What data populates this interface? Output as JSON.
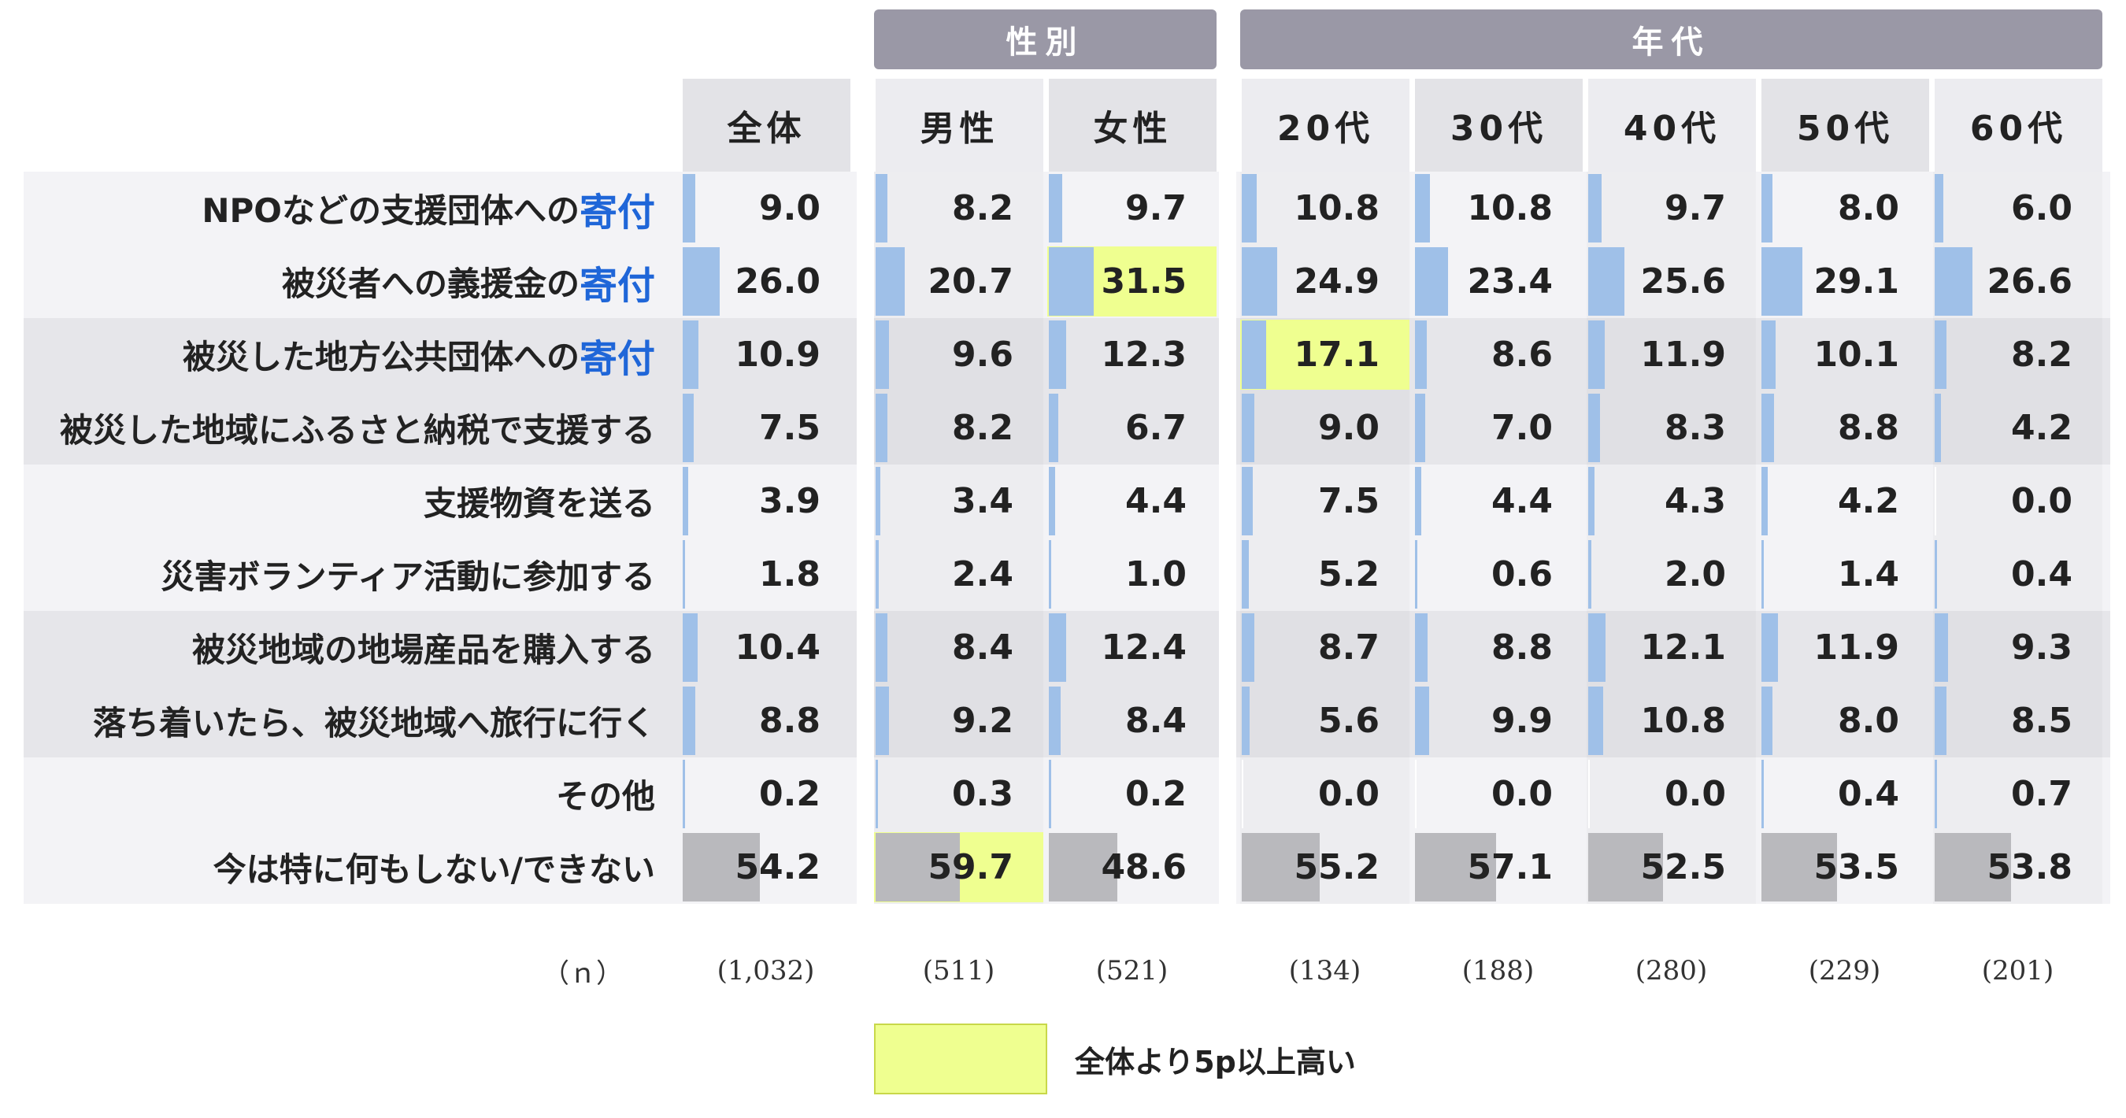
{
  "chart_data": {
    "type": "table",
    "groups": [
      {
        "label": "性別",
        "columns": [
          1,
          2
        ]
      },
      {
        "label": "年代",
        "columns": [
          3,
          4,
          5,
          6,
          7
        ]
      }
    ],
    "columns": [
      "全体",
      "男性",
      "女性",
      "20代",
      "30代",
      "40代",
      "50代",
      "60代"
    ],
    "rows": [
      {
        "label_pre": "NPOなどの支援団体への",
        "label_hl": "寄付",
        "values": [
          9.0,
          8.2,
          9.7,
          10.8,
          10.8,
          9.7,
          8.0,
          6.0
        ]
      },
      {
        "label_pre": "被災者への義援金の",
        "label_hl": "寄付",
        "values": [
          26.0,
          20.7,
          31.5,
          24.9,
          23.4,
          25.6,
          29.1,
          26.6
        ]
      },
      {
        "label_pre": "被災した地方公共団体への",
        "label_hl": "寄付",
        "values": [
          10.9,
          9.6,
          12.3,
          17.1,
          8.6,
          11.9,
          10.1,
          8.2
        ]
      },
      {
        "label_pre": "被災した地域にふるさと納税で支援する",
        "label_hl": "",
        "values": [
          7.5,
          8.2,
          6.7,
          9.0,
          7.0,
          8.3,
          8.8,
          4.2
        ]
      },
      {
        "label_pre": "支援物資を送る",
        "label_hl": "",
        "values": [
          3.9,
          3.4,
          4.4,
          7.5,
          4.4,
          4.3,
          4.2,
          0.0
        ]
      },
      {
        "label_pre": "災害ボランティア活動に参加する",
        "label_hl": "",
        "values": [
          1.8,
          2.4,
          1.0,
          5.2,
          0.6,
          2.0,
          1.4,
          0.4
        ]
      },
      {
        "label_pre": "被災地域の地場産品を購入する",
        "label_hl": "",
        "values": [
          10.4,
          8.4,
          12.4,
          8.7,
          8.8,
          12.1,
          11.9,
          9.3
        ]
      },
      {
        "label_pre": "落ち着いたら、被災地域へ旅行に行く",
        "label_hl": "",
        "values": [
          8.8,
          9.2,
          8.4,
          5.6,
          9.9,
          10.8,
          8.0,
          8.5
        ]
      },
      {
        "label_pre": "その他",
        "label_hl": "",
        "values": [
          0.2,
          0.3,
          0.2,
          0.0,
          0.0,
          0.0,
          0.4,
          0.7
        ]
      },
      {
        "label_pre": "今は特に何もしない/できない",
        "label_hl": "",
        "values": [
          54.2,
          59.7,
          48.6,
          55.2,
          57.1,
          52.5,
          53.5,
          53.8
        ],
        "gray": true
      }
    ],
    "n_label": "（ｎ）",
    "n_values": [
      "(1,032)",
      "(511)",
      "(521)",
      "(134)",
      "(188)",
      "(280)",
      "(229)",
      "(201)"
    ],
    "legend": {
      "label": "全体より5p以上高い",
      "color": "#efff90"
    },
    "highlight_rule_points": 5,
    "colors": {
      "bar": "#9fc0e8",
      "bar_gray": "#b9b9bd",
      "highlight": "#efff90",
      "header": "#9a98a6"
    }
  }
}
